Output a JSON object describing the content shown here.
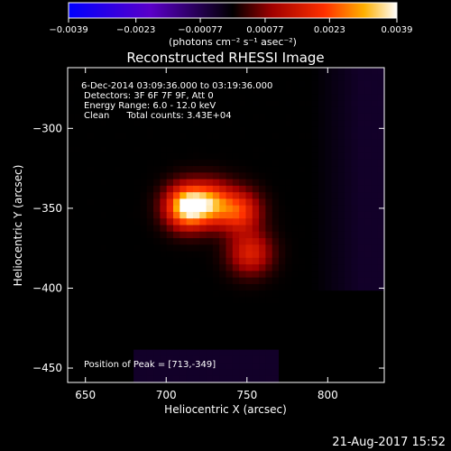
{
  "chart_data": {
    "type": "heatmap",
    "title": "Reconstructed RHESSI Image",
    "xlabel": "Heliocentric X (arcsec)",
    "ylabel": "Heliocentric Y (arcsec)",
    "xlim": [
      639,
      835
    ],
    "ylim": [
      -459,
      -262
    ],
    "x_ticks": [
      650,
      700,
      750,
      800
    ],
    "x_tick_labels": [
      "650",
      "700",
      "750",
      "800"
    ],
    "y_ticks": [
      -450,
      -400,
      -350,
      -300
    ],
    "y_tick_labels": [
      "−450",
      "−400",
      "−350",
      "−300"
    ],
    "colorbar": {
      "range": [
        -0.0039,
        0.0039
      ],
      "ticks": [
        -0.0039,
        -0.0023,
        -0.00077,
        0.00077,
        0.0023,
        0.0039
      ],
      "tick_labels": [
        "−0.0039",
        "−0.0023",
        "−0.00077",
        "0.00077",
        "0.0023",
        "0.0039"
      ],
      "units": "(photons cm⁻² s⁻¹ asec⁻²)"
    },
    "annotations": [
      "6-Dec-2014 03:09:36.000 to 03:19:36.000",
      "Detectors: 3F 6F 7F 9F, Att 0",
      "Energy Range: 6.0 - 12.0 keV",
      "Clean      Total counts: 3.43E+04"
    ],
    "peak_label": "Position of Peak = [713,-349]",
    "peak": [
      713,
      -349
    ],
    "sources": [
      {
        "x": 713,
        "y": -349,
        "value": 0.0039
      },
      {
        "x": 745,
        "y": -352,
        "value": 0.0021
      },
      {
        "x": 752,
        "y": -378,
        "value": 0.0017
      },
      {
        "x": 728,
        "y": -347,
        "value": 0.0024
      }
    ]
  },
  "footer": {
    "timestamp": "21-Aug-2017 15:52"
  }
}
